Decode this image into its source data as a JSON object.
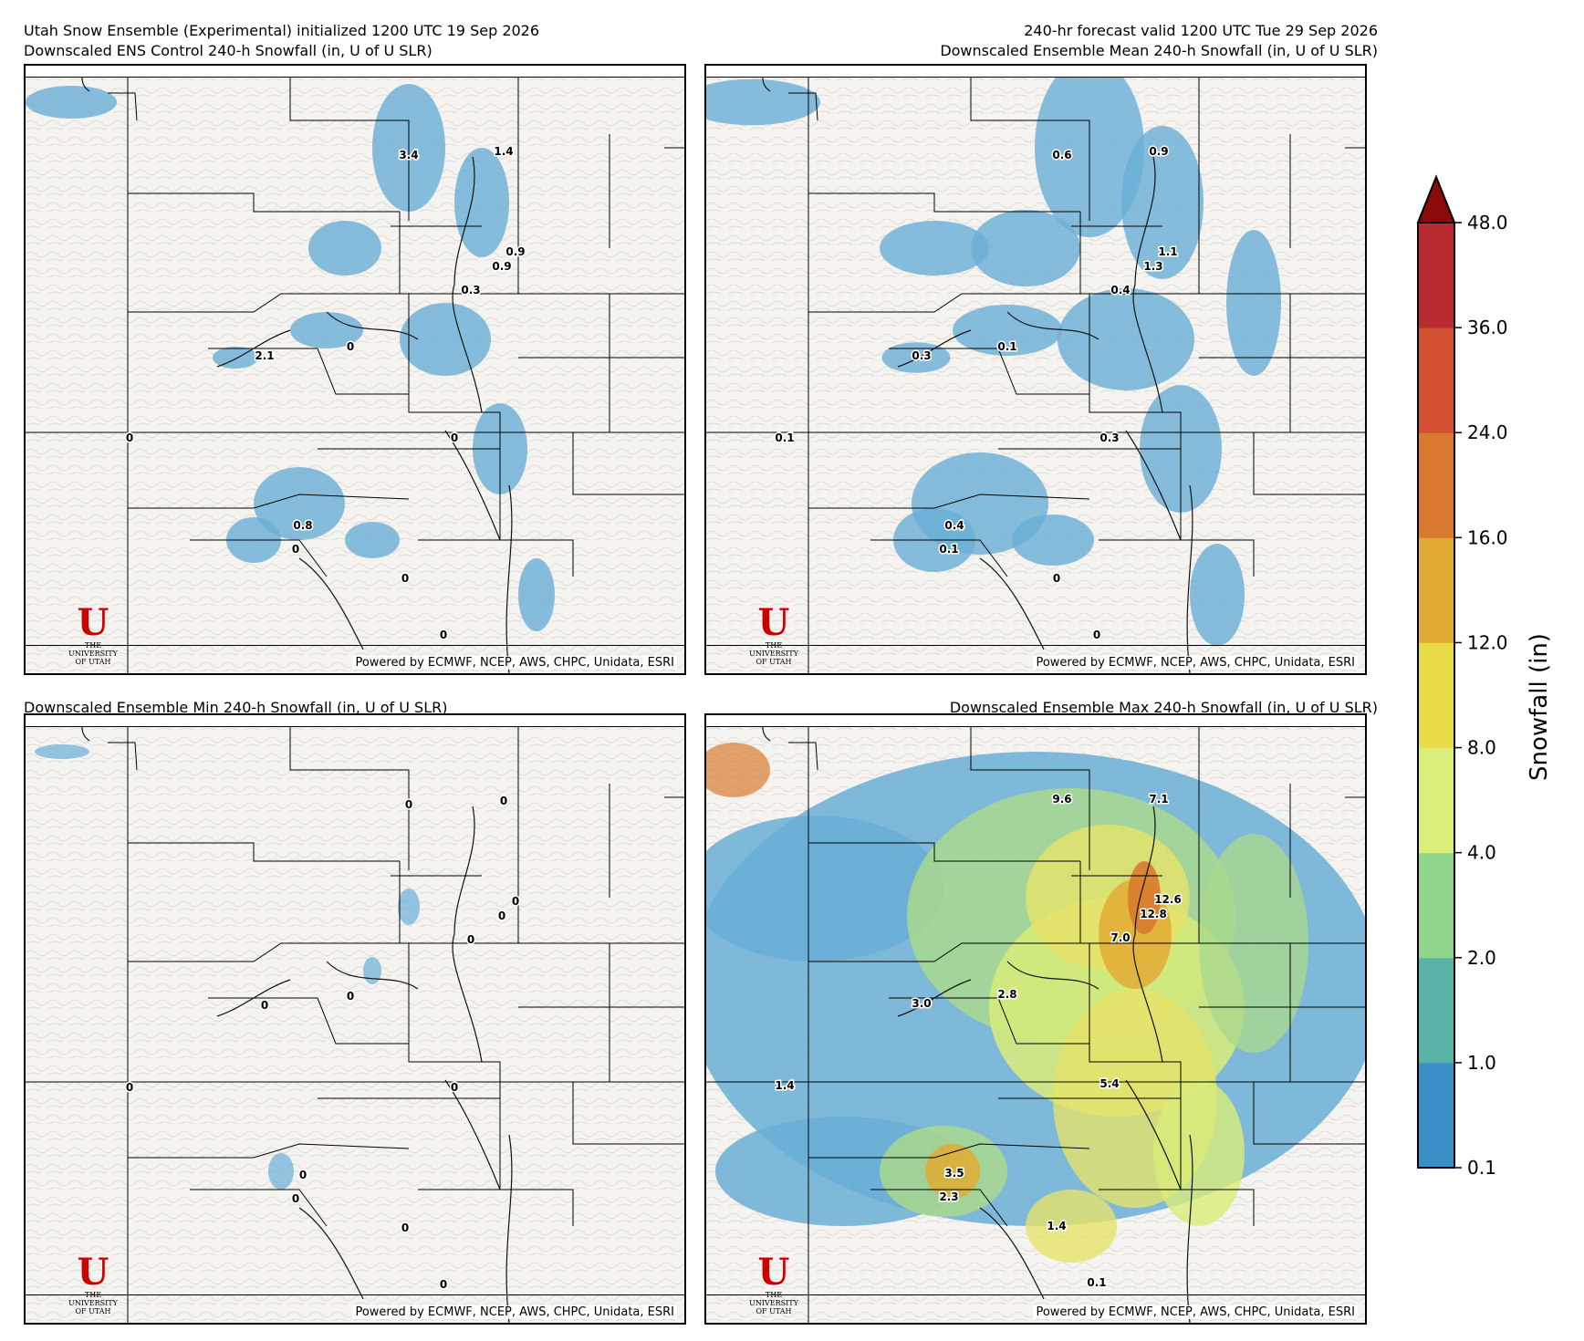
{
  "header": {
    "left_line1": "Utah Snow Ensemble (Experimental) initialized 1200 UTC 19 Sep 2026",
    "left_line2": "Downscaled ENS Control 240-h Snowfall (in, U of U SLR)",
    "right_line1": "240-hr forecast valid 1200 UTC Tue 29 Sep 2026",
    "right_line2": "Downscaled Ensemble Mean 240-h Snowfall (in, U of U SLR)"
  },
  "panels": [
    {
      "id": "control",
      "title": "Downscaled ENS Control 240-h Snowfall (in, U of U SLR)",
      "labels": [
        "3.4",
        "1.4",
        "0.9",
        "0.9",
        "0.3",
        "2.1",
        "0",
        "0",
        "0",
        "0.8",
        "0",
        "0",
        "0"
      ]
    },
    {
      "id": "mean",
      "title": "Downscaled Ensemble Mean 240-h Snowfall (in, U of U SLR)",
      "labels": [
        "0.6",
        "0.9",
        "1.1",
        "1.3",
        "0.4",
        "0.3",
        "0.1",
        "0.1",
        "0.3",
        "0.4",
        "0.1",
        "0",
        "0"
      ]
    },
    {
      "id": "min",
      "title": "Downscaled Ensemble Min 240-h Snowfall (in, U of U SLR)",
      "labels": [
        "0",
        "0",
        "0",
        "0",
        "0",
        "0",
        "0",
        "0",
        "0",
        "0",
        "0",
        "0",
        "0"
      ]
    },
    {
      "id": "max",
      "title": "Downscaled Ensemble Max 240-h Snowfall (in, U of U SLR)",
      "labels": [
        "9.6",
        "7.1",
        "12.6",
        "12.8",
        "7.0",
        "3.0",
        "2.8",
        "1.4",
        "5.4",
        "3.5",
        "2.3",
        "1.4",
        "0.1"
      ]
    }
  ],
  "credit": "Powered by ECMWF, NCEP, AWS, CHPC, Unidata, ESRI",
  "logo": {
    "letter": "U",
    "line1": "THE",
    "line2": "UNIVERSITY",
    "line3": "OF UTAH"
  },
  "colorbar": {
    "title": "Snowfall (in)",
    "ticks": [
      "0.1",
      "1.0",
      "2.0",
      "4.0",
      "8.0",
      "12.0",
      "16.0",
      "24.0",
      "36.0",
      "48.0"
    ],
    "colors": [
      "#3a8fc7",
      "#5bb3a8",
      "#8fd68c",
      "#d9ef7a",
      "#e8dc48",
      "#e2ac34",
      "#d97a30",
      "#d24f30",
      "#b82a30",
      "#8b0a0a"
    ]
  }
}
